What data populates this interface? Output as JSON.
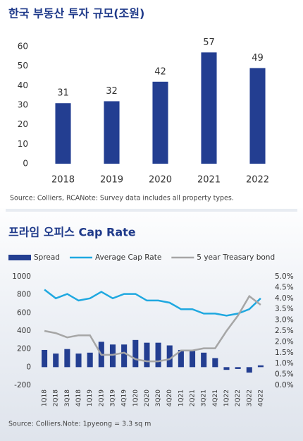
{
  "chart_data": [
    {
      "type": "bar",
      "title": "한국 부동산 투자 규모(조원)",
      "categories": [
        "2018",
        "2019",
        "2020",
        "2021",
        "2022"
      ],
      "values": [
        31,
        32,
        42,
        57,
        49
      ],
      "color": "#233e91",
      "ylim": [
        0,
        60
      ],
      "yticks": [
        0,
        10,
        20,
        30,
        40,
        50,
        60
      ],
      "grid": false,
      "note": "Source: Colliers, RCANote: Survey data includes all property types."
    },
    {
      "type": "combo",
      "title": "프라임 오피스 Cap Rate",
      "categories": [
        "1Q18",
        "2Q18",
        "3Q18",
        "4Q18",
        "1Q19",
        "2Q19",
        "3Q19",
        "4Q19",
        "1Q20",
        "2Q20",
        "3Q20",
        "4Q20",
        "1Q21",
        "2Q21",
        "3Q21",
        "4Q21",
        "1Q22",
        "2Q22",
        "3Q22",
        "4Q22"
      ],
      "series": [
        {
          "name": "Spread",
          "type": "bar",
          "color": "#233e91",
          "values": [
            190,
            150,
            200,
            150,
            160,
            280,
            250,
            250,
            300,
            270,
            270,
            240,
            190,
            180,
            160,
            100,
            -30,
            -20,
            -60,
            20
          ]
        },
        {
          "name": "Average Cap Rate",
          "type": "line",
          "axis": "y2",
          "color": "#1fa8e0",
          "values": [
            4.4,
            4.0,
            4.2,
            3.9,
            4.0,
            4.3,
            4.0,
            4.2,
            4.2,
            3.9,
            3.9,
            3.8,
            3.5,
            3.5,
            3.3,
            3.3,
            3.2,
            3.3,
            3.5,
            4.0
          ]
        },
        {
          "name": "5 year Treasary bond",
          "type": "line",
          "axis": "y2",
          "color": "#a6a6a6",
          "values": [
            2.5,
            2.4,
            2.2,
            2.3,
            2.3,
            1.4,
            1.4,
            1.5,
            1.2,
            1.1,
            1.1,
            1.2,
            1.6,
            1.6,
            1.7,
            1.7,
            2.5,
            3.2,
            4.1,
            3.7
          ]
        }
      ],
      "ylim": [
        -200,
        1000
      ],
      "yticks": [
        -200,
        0,
        200,
        400,
        600,
        800,
        1000
      ],
      "y2lim": [
        0,
        5
      ],
      "y2ticks": [
        {
          "value": 0,
          "label": "0.0%"
        },
        {
          "value": 0.5,
          "label": "0.5%"
        },
        {
          "value": 1,
          "label": "1.0%"
        },
        {
          "value": 1.5,
          "label": "1.5%"
        },
        {
          "value": 2,
          "label": "2.0%"
        },
        {
          "value": 2.5,
          "label": "2.5%"
        },
        {
          "value": 3,
          "label": "3.0%"
        },
        {
          "value": 3.5,
          "label": "3.5%"
        },
        {
          "value": 4,
          "label": "4.0%"
        },
        {
          "value": 4.5,
          "label": "4.5%"
        },
        {
          "value": 5,
          "label": "5.0%"
        }
      ],
      "grid": false,
      "legend": "top",
      "note": "Source: Colliers.Note: 1pyeong = 3.3 sq m"
    }
  ]
}
